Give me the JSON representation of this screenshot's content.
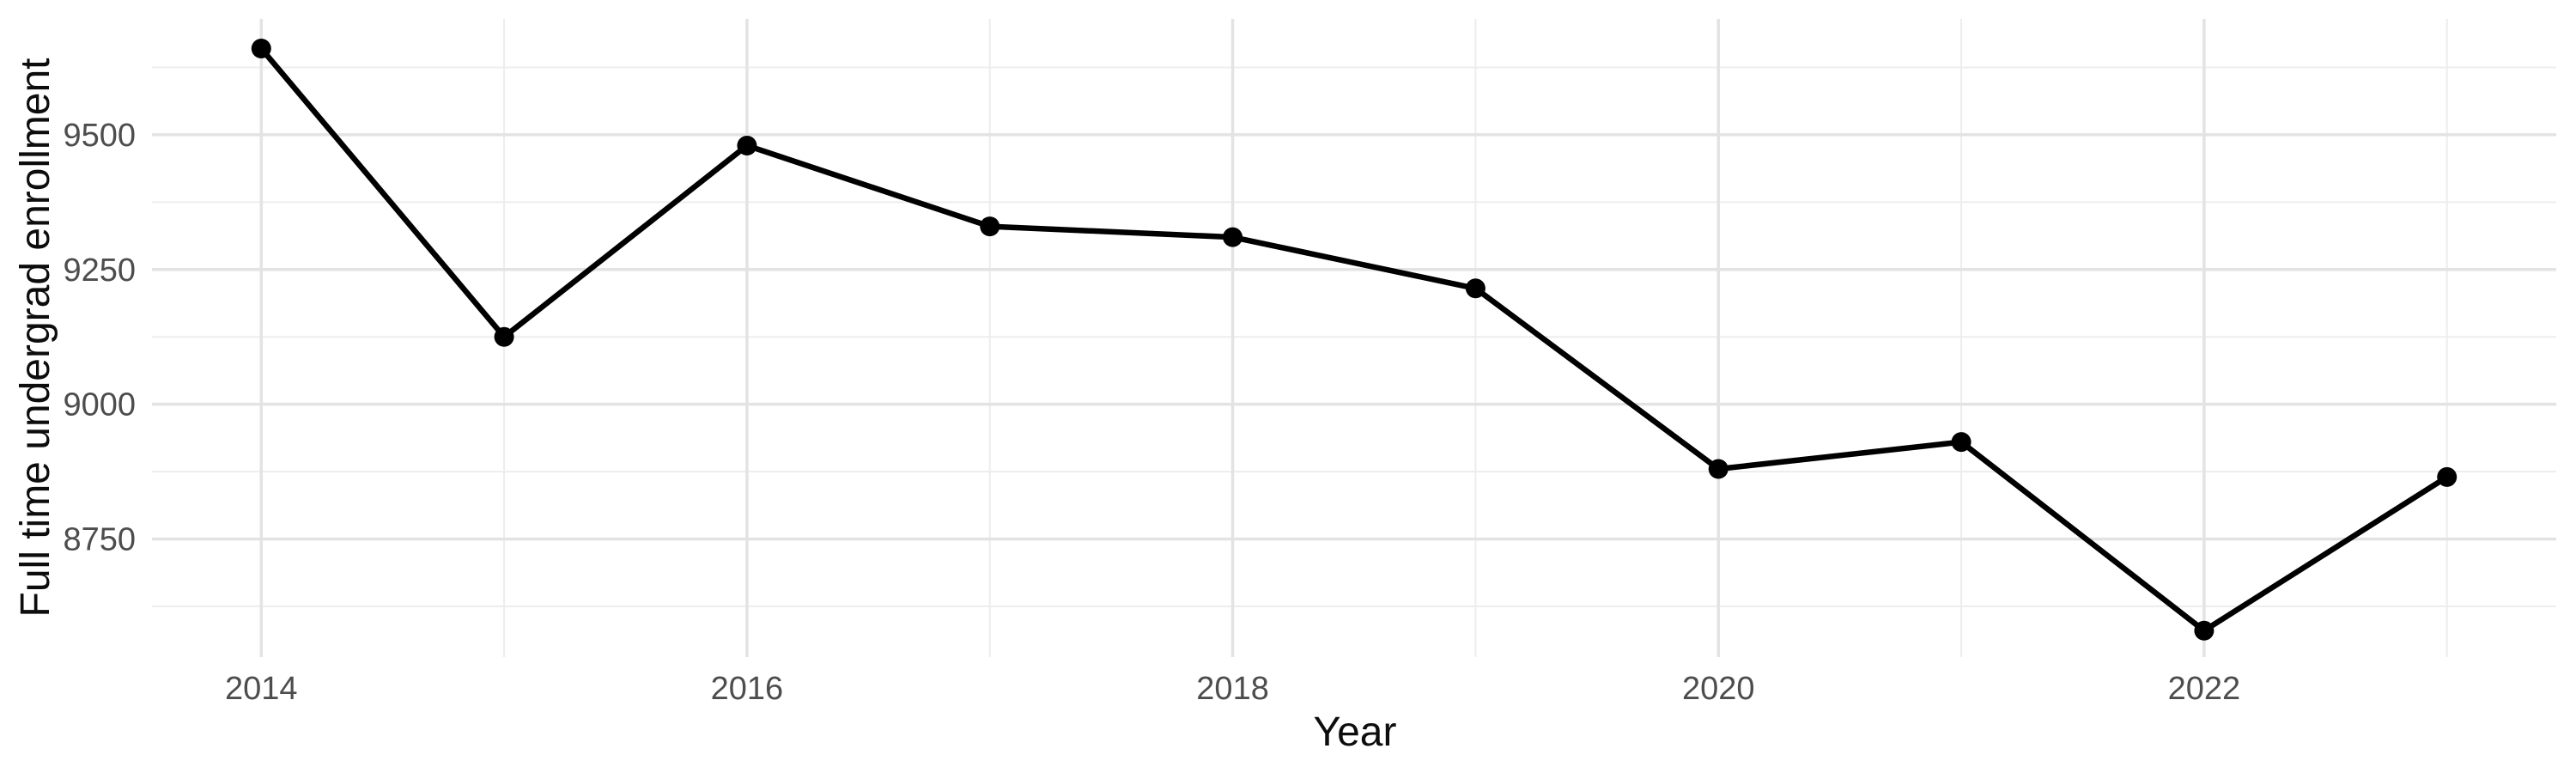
{
  "chart": {
    "background_color": "#ffffff",
    "line_color": "#000000",
    "point_color": "#000000",
    "grid_major_color": "#e3e3e3",
    "grid_minor_color": "#ededed",
    "tick_label_color": "#4d4d4d",
    "axis_title_color": "#0d0d0d"
  },
  "chart_data": {
    "type": "line",
    "title": "",
    "xlabel": "Year",
    "ylabel": "Full time undergrad enrollment",
    "x": [
      2014,
      2015,
      2016,
      2017,
      2018,
      2019,
      2020,
      2021,
      2022,
      2023
    ],
    "series": [
      {
        "name": "Full time undergrad enrollment",
        "values": [
          9660,
          9125,
          9480,
          9330,
          9310,
          9215,
          8880,
          8930,
          8580,
          8865
        ]
      }
    ],
    "x_tick_labels": [
      "2014",
      "2016",
      "2018",
      "2020",
      "2022"
    ],
    "x_ticks": [
      2014,
      2016,
      2018,
      2020,
      2022
    ],
    "x_minor_gridlines": [
      2015,
      2017,
      2019,
      2021,
      2023
    ],
    "y_tick_labels": [
      "9500",
      "9250",
      "9000",
      "8750"
    ],
    "y_ticks": [
      9500,
      9250,
      9000,
      8750
    ],
    "y_minor_gridlines": [
      9625,
      9375,
      9125,
      8875,
      8625
    ],
    "xlim": [
      2013.55,
      2023.45
    ],
    "ylim": [
      8531,
      9715
    ],
    "grid": true,
    "legend": "none",
    "marker": "point",
    "line_width": 6.5,
    "point_radius": 11.5
  }
}
